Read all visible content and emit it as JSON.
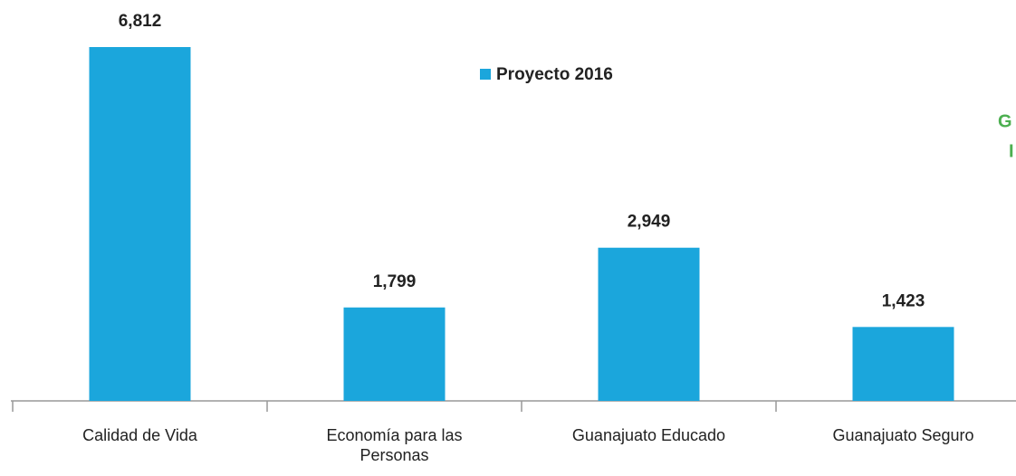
{
  "chart_data": {
    "type": "bar",
    "categories": [
      "Calidad de Vida",
      "Economía para las Personas",
      "Guanajuato Educado",
      "Guanajuato Seguro"
    ],
    "series": [
      {
        "name": "Proyecto 2016",
        "color": "#1ba6dc",
        "values": [
          6812,
          1799,
          2949,
          1423
        ],
        "value_labels": [
          "6,812",
          "1,799",
          "2,949",
          "1,423"
        ]
      }
    ],
    "legend": "top-center",
    "annotations": [
      "G",
      "I"
    ]
  }
}
